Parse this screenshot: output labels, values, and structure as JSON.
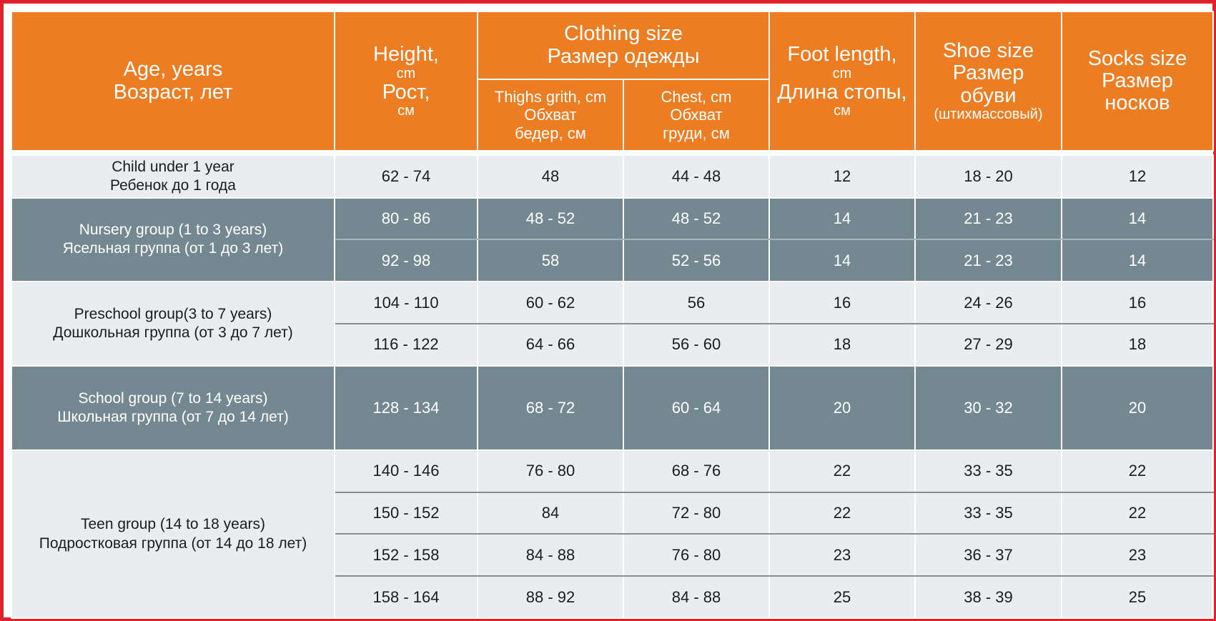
{
  "header": {
    "age": {
      "en": "Age, years",
      "ru": "Возраст, лет"
    },
    "height": {
      "en": "Height,",
      "en_unit": "cm",
      "ru": "Рост,",
      "ru_unit": "см"
    },
    "clothing": {
      "en": "Clothing size",
      "ru": "Размер одежды"
    },
    "thighs": {
      "en": "Thighs grith, cm",
      "ru1": "Обхват",
      "ru2": "бедер, см"
    },
    "chest": {
      "en": "Chest, cm",
      "ru1": "Обхват",
      "ru2": "груди, см"
    },
    "foot": {
      "en": "Foot length,",
      "en_unit": "cm",
      "ru": "Длина стопы,",
      "ru_unit": "см"
    },
    "shoe": {
      "en": "Shoe size",
      "ru1": "Размер",
      "ru2": "обуви",
      "note": "(штихмассовый)"
    },
    "socks": {
      "en": "Socks size",
      "ru1": "Размер",
      "ru2": "носков"
    }
  },
  "groups": [
    {
      "en": "Child under 1 year",
      "ru": "Ребенок до 1 года",
      "rows": [
        {
          "height": "62 - 74",
          "thighs": "48",
          "chest": "44 - 48",
          "foot": "12",
          "shoe": "18 - 20",
          "socks": "12"
        }
      ]
    },
    {
      "en": "Nursery group (1 to 3 years)",
      "ru": "Ясельная группа (от 1 до 3 лет)",
      "rows": [
        {
          "height": "80 - 86",
          "thighs": "48 - 52",
          "chest": "48 - 52",
          "foot": "14",
          "shoe": "21 - 23",
          "socks": "14"
        },
        {
          "height": "92 - 98",
          "thighs": "58",
          "chest": "52 - 56",
          "foot": "14",
          "shoe": "21 - 23",
          "socks": "14"
        }
      ]
    },
    {
      "en": "Preschool group(3 to 7 years)",
      "ru": "Дошкольная группа (от 3 до 7 лет)",
      "rows": [
        {
          "height": "104 - 110",
          "thighs": "60 - 62",
          "chest": "56",
          "foot": "16",
          "shoe": "24 - 26",
          "socks": "16"
        },
        {
          "height": "116 - 122",
          "thighs": "64 - 66",
          "chest": "56 - 60",
          "foot": "18",
          "shoe": "27 - 29",
          "socks": "18"
        }
      ]
    },
    {
      "en": "School group (7 to 14 years)",
      "ru": "Школьная группа (от 7 до 14 лет)",
      "rows": [
        {
          "height": "128 - 134",
          "thighs": "68 - 72",
          "chest": "60 - 64",
          "foot": "20",
          "shoe": "30 - 32",
          "socks": "20"
        }
      ]
    },
    {
      "en": "Teen group (14 to 18 years)",
      "ru": "Подростковая группа (от 14 до 18 лет)",
      "rows": [
        {
          "height": "140 - 146",
          "thighs": "76 - 80",
          "chest": "68 - 76",
          "foot": "22",
          "shoe": "33 - 35",
          "socks": "22"
        },
        {
          "height": "150 - 152",
          "thighs": "84",
          "chest": "72 - 80",
          "foot": "22",
          "shoe": "33 - 35",
          "socks": "22"
        },
        {
          "height": "152 - 158",
          "thighs": "84 - 88",
          "chest": "76 - 80",
          "foot": "23",
          "shoe": "36 - 37",
          "socks": "23"
        },
        {
          "height": "158 - 164",
          "thighs": "88 - 92",
          "chest": "84 - 88",
          "foot": "25",
          "shoe": "38 - 39",
          "socks": "25"
        }
      ]
    }
  ],
  "colors": {
    "header": "#ed7d22",
    "light_row": "#eaedf0",
    "dark_row": "#748892",
    "frame": "#e0202a"
  }
}
